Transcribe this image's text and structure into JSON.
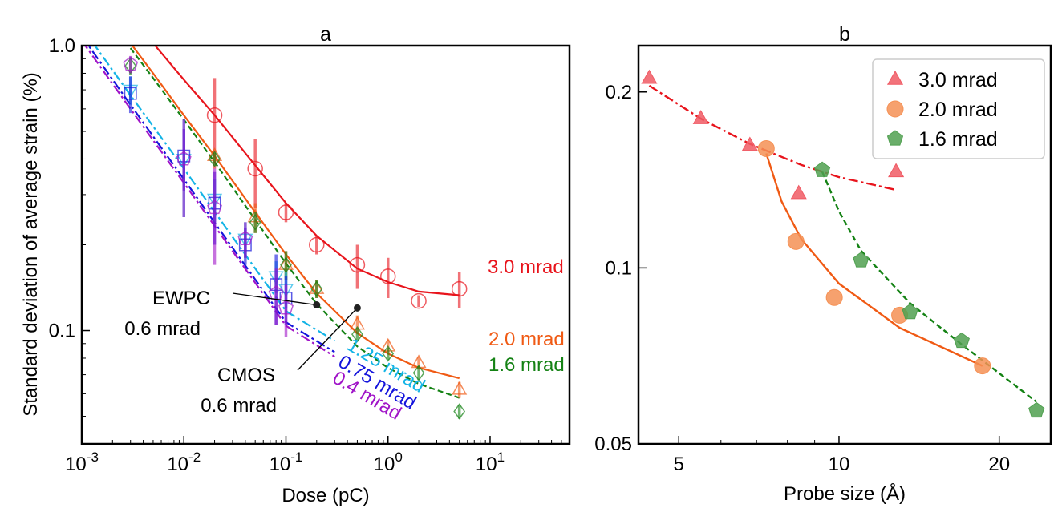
{
  "chart_data": [
    {
      "type": "scatter",
      "title": "a",
      "xlabel": "Dose (pC)",
      "ylabel": "Standard deviation of average strain (%)",
      "xscale": "log",
      "yscale": "log",
      "xlim": [
        0.001,
        60
      ],
      "ylim": [
        0.04,
        1.0
      ],
      "x_ticks": [
        {
          "value": 0.001,
          "base": "10",
          "exp": "-3"
        },
        {
          "value": 0.01,
          "base": "10",
          "exp": "-2"
        },
        {
          "value": 0.1,
          "base": "10",
          "exp": "-1"
        },
        {
          "value": 1,
          "base": "10",
          "exp": "0"
        },
        {
          "value": 10,
          "base": "10",
          "exp": "1"
        }
      ],
      "y_ticks": [
        {
          "value": 0.1,
          "label": "0.1"
        },
        {
          "value": 1.0,
          "label": "1.0"
        }
      ],
      "series": [
        {
          "name": "3.0 mrad",
          "color": "#e8141c",
          "marker": "circle",
          "line": "solid",
          "x": [
            0.02,
            0.05,
            0.1,
            0.2,
            0.5,
            1,
            2,
            5
          ],
          "y": [
            0.57,
            0.37,
            0.26,
            0.2,
            0.17,
            0.155,
            0.127,
            0.14
          ],
          "err": [
            0.2,
            0.1,
            0.02,
            0.015,
            0.03,
            0.025,
            0.006,
            0.02
          ],
          "fit_x": [
            0.003,
            0.005,
            0.01,
            0.02,
            0.05,
            0.1,
            0.2,
            0.5,
            1,
            2,
            5
          ],
          "fit_y": [
            1.28,
            1.02,
            0.76,
            0.57,
            0.38,
            0.28,
            0.215,
            0.165,
            0.148,
            0.137,
            0.133
          ]
        },
        {
          "name": "2.0 mrad",
          "color": "#f05a14",
          "marker": "triangle",
          "line": "solid",
          "x": [
            0.02,
            0.05,
            0.1,
            0.2,
            0.5,
            1,
            2,
            5
          ],
          "y": [
            0.41,
            0.25,
            0.17,
            0.14,
            0.105,
            0.088,
            0.077,
            0.062
          ],
          "err": [
            0.02,
            0.03,
            0.02,
            0.01,
            0.008,
            0.005,
            0.004,
            0.004
          ],
          "fit_x": [
            0.003,
            0.005,
            0.01,
            0.02,
            0.05,
            0.1,
            0.2,
            0.5,
            1,
            2,
            5
          ],
          "fit_y": [
            1.02,
            0.8,
            0.57,
            0.41,
            0.26,
            0.185,
            0.135,
            0.098,
            0.083,
            0.074,
            0.068
          ]
        },
        {
          "name": "1.6 mrad",
          "color": "#148214",
          "marker": "diamond",
          "line": "dashed",
          "x": [
            0.003,
            0.02,
            0.05,
            0.1,
            0.2,
            0.5,
            1,
            2,
            5
          ],
          "y": [
            0.85,
            0.4,
            0.24,
            0.17,
            0.14,
            0.097,
            0.083,
            0.071,
            0.052
          ],
          "err": [
            0.06,
            0.02,
            0.02,
            0.02,
            0.01,
            0.005,
            0.004,
            0.004,
            0.003
          ],
          "fit_x": [
            0.003,
            0.005,
            0.01,
            0.02,
            0.05,
            0.1,
            0.2,
            0.5,
            1,
            2,
            5
          ],
          "fit_y": [
            0.98,
            0.77,
            0.55,
            0.39,
            0.245,
            0.172,
            0.124,
            0.088,
            0.074,
            0.065,
            0.058
          ]
        },
        {
          "name": "1.25 mrad",
          "color": "#14b4e6",
          "marker": "triangle-down",
          "line": "dashdot",
          "x": [
            0.003,
            0.01,
            0.02,
            0.04,
            0.08,
            0.1
          ],
          "y": [
            0.7,
            0.4,
            0.29,
            0.21,
            0.155,
            0.14
          ],
          "err": [
            0.08,
            0.15,
            0.05,
            0.03,
            0.02,
            0.02
          ],
          "fit_x": [
            0.001,
            0.003,
            0.01,
            0.03,
            0.1,
            0.3
          ],
          "fit_y": [
            1.16,
            0.67,
            0.37,
            0.213,
            0.117,
            0.092
          ]
        },
        {
          "name": "0.75 mrad",
          "color": "#1414dc",
          "marker": "square",
          "line": "dashdot",
          "x": [
            0.003,
            0.01,
            0.02,
            0.04,
            0.08,
            0.1
          ],
          "y": [
            0.68,
            0.41,
            0.28,
            0.2,
            0.145,
            0.13
          ],
          "err": [
            0.1,
            0.1,
            0.08,
            0.03,
            0.04,
            0.025
          ],
          "fit_x": [
            0.001,
            0.003,
            0.01,
            0.03,
            0.1,
            0.3
          ],
          "fit_y": [
            1.08,
            0.62,
            0.34,
            0.195,
            0.107,
            0.084
          ]
        },
        {
          "name": "0.4 mrad",
          "color": "#a014c8",
          "marker": "pentagon",
          "line": "dashdot",
          "x": [
            0.003,
            0.01,
            0.02,
            0.04,
            0.08,
            0.1
          ],
          "y": [
            0.86,
            0.4,
            0.27,
            0.21,
            0.135,
            0.12
          ],
          "err": [
            0.06,
            0.15,
            0.1,
            0.03,
            0.03,
            0.025
          ],
          "fit_x": [
            0.001,
            0.003,
            0.01,
            0.03,
            0.1,
            0.3
          ],
          "fit_y": [
            1.04,
            0.6,
            0.33,
            0.19,
            0.104,
            0.081
          ]
        }
      ],
      "annotations": [
        {
          "label": "EWPC",
          "sublabel": "0.6 mrad",
          "x": 0.2,
          "y": 0.123
        },
        {
          "label": "CMOS",
          "sublabel": "0.6 mrad",
          "x": 0.5,
          "y": 0.12
        }
      ]
    },
    {
      "type": "scatter",
      "title": "b",
      "xlabel": "Probe size (Å)",
      "ylabel": "",
      "xscale": "log",
      "yscale": "log",
      "xlim": [
        4.2,
        25
      ],
      "ylim": [
        0.05,
        0.24
      ],
      "x_ticks": [
        {
          "value": 5,
          "label": "5"
        },
        {
          "value": 10,
          "label": "10"
        },
        {
          "value": 20,
          "label": "20"
        }
      ],
      "y_ticks": [
        {
          "value": 0.05,
          "label": "0.05"
        },
        {
          "value": 0.1,
          "label": "0.1"
        },
        {
          "value": 0.2,
          "label": "0.2"
        }
      ],
      "legend": "top-right",
      "series": [
        {
          "name": "3.0 mrad",
          "color": "#f05a64",
          "marker": "triangle",
          "line": "dashdot",
          "line_color": "#e8141c",
          "x": [
            4.4,
            5.5,
            6.8,
            8.4,
            12.8
          ],
          "y": [
            0.211,
            0.18,
            0.162,
            0.134,
            0.146
          ],
          "fit_x": [
            4.4,
            5.5,
            6.8,
            8.5,
            10,
            12.8
          ],
          "fit_y": [
            0.205,
            0.18,
            0.163,
            0.15,
            0.143,
            0.136
          ]
        },
        {
          "name": "2.0 mrad",
          "color": "#f59155",
          "marker": "circle",
          "line": "solid",
          "line_color": "#f05a14",
          "x": [
            7.3,
            8.3,
            9.8,
            13,
            18.6
          ],
          "y": [
            0.16,
            0.111,
            0.089,
            0.083,
            0.068
          ],
          "fit_x": [
            7.3,
            7.8,
            8.5,
            10,
            13,
            18.6
          ],
          "fit_y": [
            0.157,
            0.13,
            0.112,
            0.094,
            0.079,
            0.068
          ]
        },
        {
          "name": "1.6 mrad",
          "color": "#50a050",
          "marker": "pentagon",
          "line": "dashed",
          "line_color": "#148214",
          "x": [
            9.3,
            11,
            13.6,
            17,
            23.5
          ],
          "y": [
            0.147,
            0.103,
            0.084,
            0.075,
            0.057
          ],
          "fit_x": [
            9.3,
            10,
            11,
            13.6,
            17,
            23.5
          ],
          "fit_y": [
            0.146,
            0.125,
            0.107,
            0.087,
            0.074,
            0.059
          ]
        }
      ]
    }
  ]
}
